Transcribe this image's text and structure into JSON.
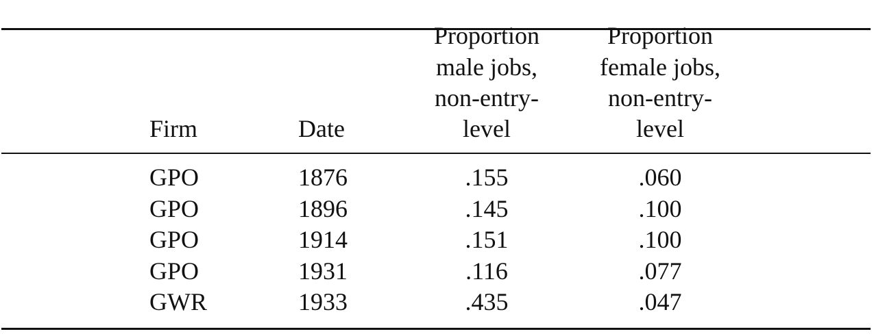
{
  "table": {
    "header": [
      [
        "Firm"
      ],
      [
        "Date"
      ],
      [
        "Proportion",
        "male jobs,",
        "non-entry-",
        "level"
      ],
      [
        "Proportion",
        "female jobs,",
        "non-entry-",
        "level"
      ]
    ],
    "rows": [
      [
        "GPO",
        "1876",
        ".155",
        ".060"
      ],
      [
        "GPO",
        "1896",
        ".145",
        ".100"
      ],
      [
        "GPO",
        "1914",
        ".151",
        ".100"
      ],
      [
        "GPO",
        "1931",
        ".116",
        ".077"
      ],
      [
        "GWR",
        "1933",
        ".435",
        ".047"
      ]
    ]
  }
}
